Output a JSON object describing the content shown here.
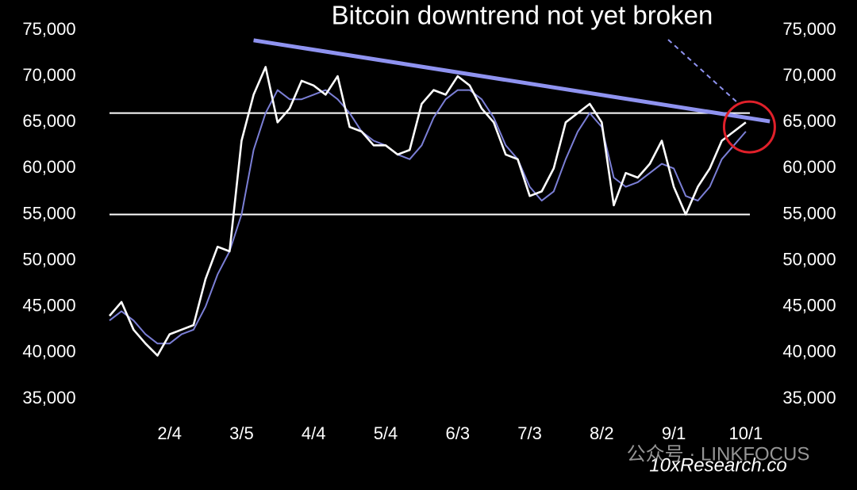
{
  "chart_data": {
    "type": "line",
    "title": "Bitcoin downtrend not yet broken",
    "watermarks": [
      "10xResearch.co",
      "公众号 · LINKFOCUS"
    ],
    "categories": [
      null,
      null,
      null,
      null,
      null,
      "2/4",
      null,
      null,
      null,
      null,
      null,
      "3/5",
      null,
      null,
      null,
      null,
      null,
      "4/4",
      null,
      null,
      null,
      null,
      null,
      "5/4",
      null,
      null,
      null,
      null,
      null,
      "6/3",
      null,
      null,
      null,
      null,
      null,
      "7/3",
      null,
      null,
      null,
      null,
      null,
      "8/2",
      null,
      null,
      null,
      null,
      null,
      "9/1",
      null,
      null,
      null,
      null,
      null,
      "10/1",
      null,
      null
    ],
    "series": [
      {
        "color": "#ffffff",
        "values": [
          44000,
          45500,
          42500,
          41000,
          39700,
          42000,
          42500,
          43000,
          48000,
          51500,
          51000,
          63000,
          68000,
          71000,
          65000,
          66500,
          69500,
          69000,
          68000,
          70000,
          64500,
          64000,
          62500,
          62500,
          61500,
          62000,
          67000,
          68500,
          68000,
          70000,
          69000,
          66500,
          65000,
          61500,
          61000,
          57000,
          57500,
          60000,
          65000,
          66000,
          67000,
          65000,
          56000,
          59500,
          59000,
          60500,
          63000,
          58000,
          55000,
          58000,
          60000,
          63000,
          64000,
          65000,
          null,
          null
        ]
      },
      {
        "color": "#7b7fd6",
        "values": [
          43500,
          44500,
          43500,
          42000,
          41000,
          41000,
          42000,
          42500,
          45000,
          48500,
          51000,
          55000,
          62000,
          66000,
          68500,
          67500,
          67500,
          68000,
          68500,
          67500,
          66000,
          64000,
          63000,
          62500,
          61500,
          61000,
          62500,
          65500,
          67500,
          68500,
          68500,
          67500,
          65500,
          62500,
          61000,
          58000,
          56500,
          57500,
          61000,
          64000,
          66000,
          64500,
          59000,
          58000,
          58500,
          59500,
          60500,
          60000,
          57000,
          56500,
          58000,
          61000,
          62500,
          64000,
          null,
          null
        ]
      }
    ],
    "hlines": [
      66000,
      55000
    ],
    "hline_color": "#ffffff",
    "trendline": {
      "color": "#8f93f0",
      "from": {
        "category": 12,
        "value": 73900
      },
      "to": {
        "category": 55,
        "value": 65100
      }
    },
    "highlight": {
      "color": "#e0202a",
      "category": 53.3,
      "value": 64500
    },
    "ylim": [
      35000,
      75000
    ],
    "yticks": [
      {
        "value": 35000,
        "label": "35,000"
      },
      {
        "value": 40000,
        "label": "40,000"
      },
      {
        "value": 45000,
        "label": "45,000"
      },
      {
        "value": 50000,
        "label": "50,000"
      },
      {
        "value": 55000,
        "label": "55,000"
      },
      {
        "value": 60000,
        "label": "60,000"
      },
      {
        "value": 65000,
        "label": "65,000"
      },
      {
        "value": 70000,
        "label": "70,000"
      },
      {
        "value": 75000,
        "label": "75,000"
      }
    ]
  }
}
